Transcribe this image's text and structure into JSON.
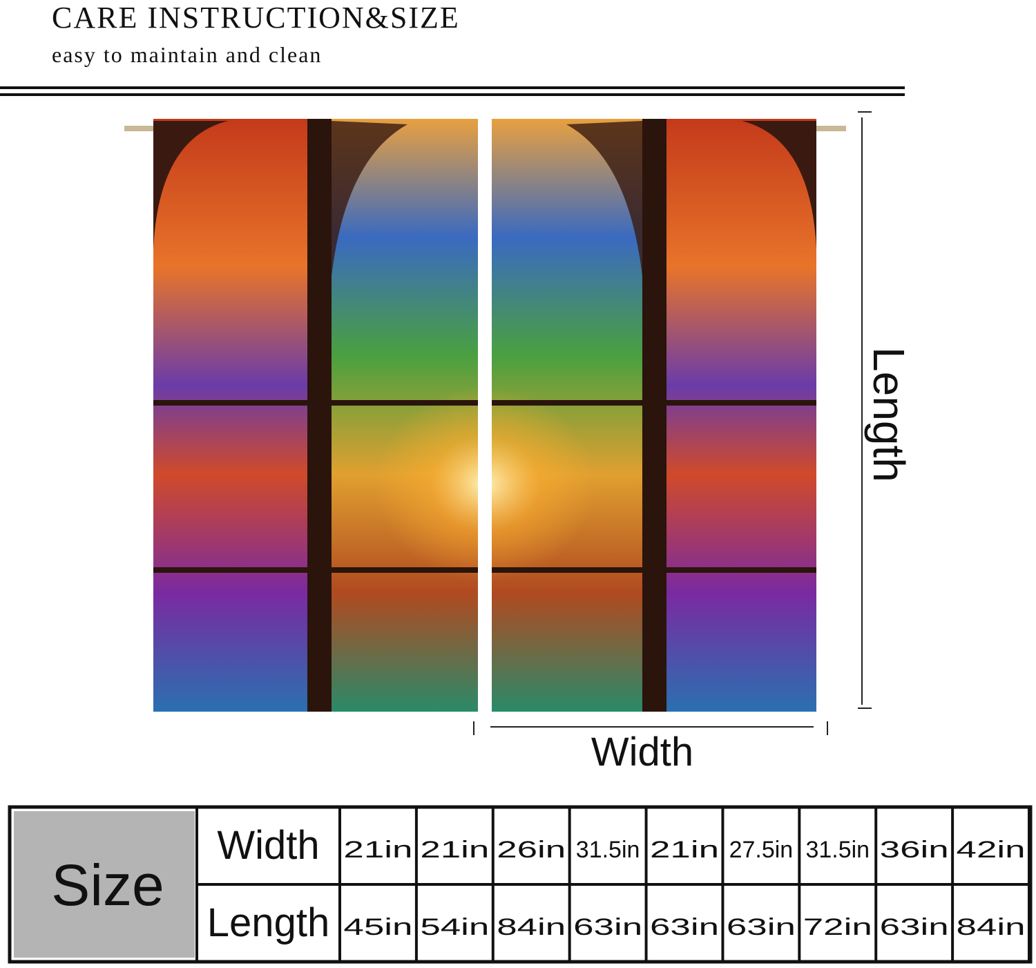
{
  "header": {
    "title": "CARE INSTRUCTION&SIZE",
    "subtitle": "easy to maintain and clean"
  },
  "dimensions": {
    "length": "Length",
    "width": "Width"
  },
  "table": {
    "label": "Size",
    "rows": [
      [
        "Width",
        "21in",
        "21in",
        "26in",
        "31.5in",
        "21in",
        "27.5in",
        "31.5in",
        "36in",
        "42in"
      ],
      [
        "Length",
        "45in",
        "54in",
        "84in",
        "63in",
        "63in",
        "63in",
        "72in",
        "63in",
        "84in"
      ]
    ]
  }
}
